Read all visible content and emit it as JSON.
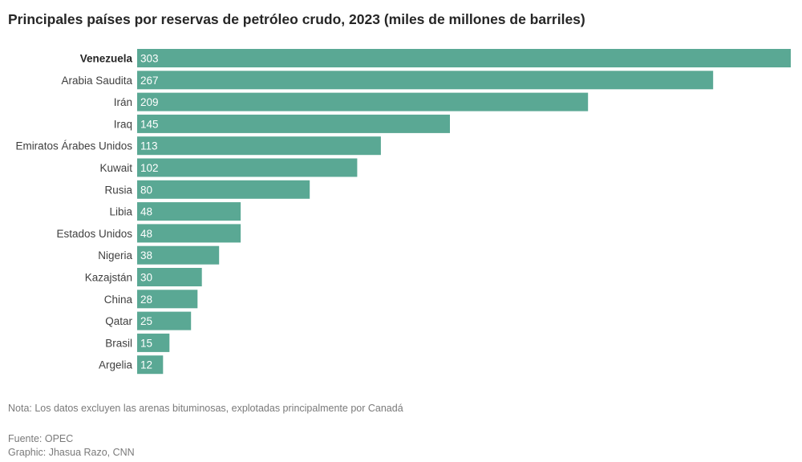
{
  "chart_data": {
    "type": "bar",
    "orientation": "horizontal",
    "title": "Principales países por reservas de petróleo crudo, 2023 (miles de millones de barriles)",
    "categories": [
      "Venezuela",
      "Arabia Saudita",
      "Irán",
      "Iraq",
      "Emiratos Árabes Unidos",
      "Kuwait",
      "Rusia",
      "Libia",
      "Estados Unidos",
      "Nigeria",
      "Kazajstán",
      "China",
      "Qatar",
      "Brasil",
      "Argelia"
    ],
    "values": [
      303,
      267,
      209,
      145,
      113,
      102,
      80,
      48,
      48,
      38,
      30,
      28,
      25,
      15,
      12
    ],
    "value_labels": [
      "303",
      "267",
      "209",
      "145",
      "113",
      "102",
      "80",
      "48",
      "48",
      "38",
      "30",
      "28",
      "25",
      "15",
      "12"
    ],
    "highlight_category": "Venezuela",
    "xlim": [
      0,
      303
    ],
    "grid": false,
    "legend": "none",
    "bar_color": "#5aa894"
  },
  "footer": {
    "note": "Nota: Los datos excluyen las arenas bituminosas, explotadas principalmente por Canadá",
    "source": "Fuente: OPEC",
    "credit": "Graphic: Jhasua Razo, CNN"
  }
}
